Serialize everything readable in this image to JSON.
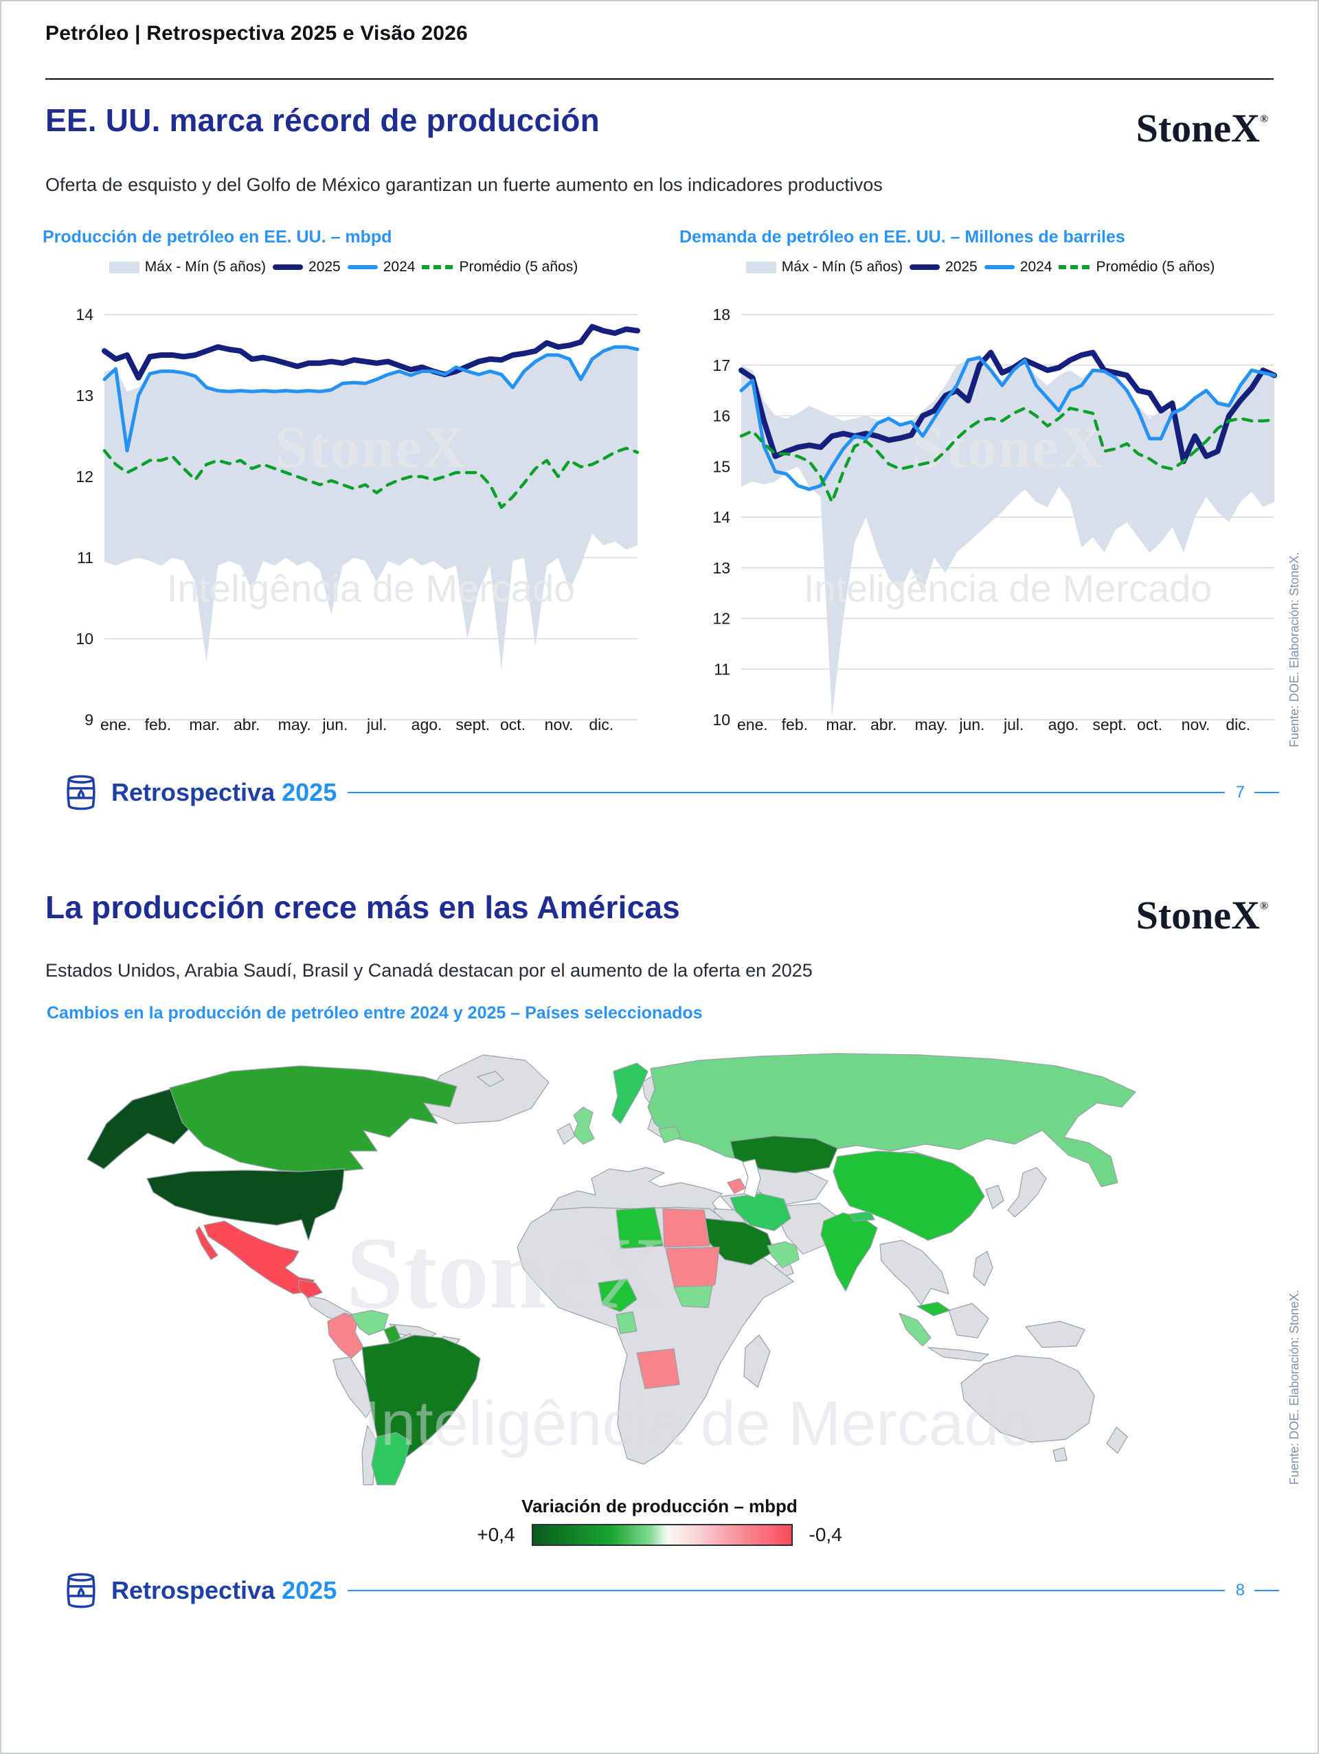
{
  "page_header": {
    "title": "Petróleo | Retrospectiva 2025 e Visão 2026"
  },
  "brand": {
    "logo": "StoneX",
    "registered": "®"
  },
  "watermark": {
    "line1": "StoneX",
    "line2": "Inteligência de Mercado"
  },
  "chart_legend": {
    "band": "Máx - Mín (5 años)",
    "y2025": "2025",
    "y2024": "2024",
    "avg": "Promédio (5 años)"
  },
  "slide1": {
    "title": "EE. UU. marca récord de producción",
    "subtitle": "Oferta de esquisto y del Golfo de México garantizan un fuerte aumento en los indicadores productivos",
    "source_note": "Fuente: DOE. Elaboración: StoneX.",
    "footer": {
      "label": "Retrospectiva",
      "year": "2025",
      "page": "7"
    }
  },
  "slide2": {
    "title": "La producción crece más en las Américas",
    "subtitle": "Estados Unidos, Arabia Saudí, Brasil y Canadá destacan por el aumento de la oferta en 2025",
    "chart_title": "Cambios en la producción de petróleo entre 2024 y 2025 – Países seleccionados",
    "source_note": "Fuente: DOE. Elaboración: StoneX.",
    "footer": {
      "label": "Retrospectiva",
      "year": "2025",
      "page": "8"
    },
    "map_legend": {
      "title": "Variación de producción – mbpd",
      "max_label": "+0,4",
      "min_label": "-0,4"
    },
    "map": {
      "palette": {
        "darkest-green": "#0b4d1c",
        "dark-green": "#117a1f",
        "green": "#2aa32f",
        "medium-green": "#2ec95e",
        "bright-green": "#1fc335",
        "soft-green": "#72d689",
        "light-green": "#7ddc8f",
        "salmon": "#f9838a",
        "red": "#fd4a58",
        "neutral": "#dcdee2"
      },
      "countries": [
        {
          "name": "united-states",
          "tone": "darkest-green"
        },
        {
          "name": "canada",
          "tone": "green"
        },
        {
          "name": "mexico",
          "tone": "red"
        },
        {
          "name": "guatemala",
          "tone": "red"
        },
        {
          "name": "colombia",
          "tone": "salmon"
        },
        {
          "name": "venezuela",
          "tone": "light-green"
        },
        {
          "name": "guyana",
          "tone": "green"
        },
        {
          "name": "brazil",
          "tone": "dark-green"
        },
        {
          "name": "argentina",
          "tone": "medium-green"
        },
        {
          "name": "united-kingdom",
          "tone": "light-green"
        },
        {
          "name": "norway",
          "tone": "medium-green"
        },
        {
          "name": "baltic-states",
          "tone": "light-green"
        },
        {
          "name": "libya",
          "tone": "bright-green"
        },
        {
          "name": "egypt",
          "tone": "salmon"
        },
        {
          "name": "sudan",
          "tone": "salmon"
        },
        {
          "name": "south-sudan",
          "tone": "light-green"
        },
        {
          "name": "nigeria",
          "tone": "bright-green"
        },
        {
          "name": "gabon",
          "tone": "light-green"
        },
        {
          "name": "angola",
          "tone": "salmon"
        },
        {
          "name": "russia",
          "tone": "soft-green"
        },
        {
          "name": "kazakhstan",
          "tone": "dark-green"
        },
        {
          "name": "azerbaijan",
          "tone": "salmon"
        },
        {
          "name": "iran",
          "tone": "medium-green"
        },
        {
          "name": "saudi-arabia",
          "tone": "dark-green"
        },
        {
          "name": "oman-uae",
          "tone": "light-green"
        },
        {
          "name": "india",
          "tone": "bright-green"
        },
        {
          "name": "nepal",
          "tone": "medium-green"
        },
        {
          "name": "china",
          "tone": "bright-green"
        },
        {
          "name": "malaysia",
          "tone": "bright-green"
        },
        {
          "name": "indonesia-sumatra",
          "tone": "light-green"
        }
      ]
    }
  },
  "chart_data": [
    {
      "type": "line",
      "title": "Producción de petróleo en EE. UU. – mbpd",
      "xlabel": "",
      "ylabel": "mbpd",
      "ylim": [
        9,
        14
      ],
      "yticks": [
        9,
        10,
        11,
        12,
        13,
        14
      ],
      "grid": true,
      "legend_position": "top",
      "x_categories": [
        "ene.",
        "feb.",
        "mar.",
        "abr.",
        "may.",
        "jun.",
        "jul.",
        "ago.",
        "sept.",
        "oct.",
        "nov.",
        "dic."
      ],
      "band": {
        "name": "Máx - Mín (5 años)",
        "color": "#d9dfea",
        "top": [
          13.3,
          13.33,
          13.05,
          13.1,
          13.28,
          13.3,
          13.3,
          13.29,
          13.25,
          13.12,
          13.08,
          13.07,
          13.08,
          13.07,
          13.08,
          13.07,
          13.08,
          13.07,
          13.08,
          13.07,
          13.09,
          13.17,
          13.18,
          13.17,
          13.22,
          13.28,
          13.31,
          13.27,
          13.31,
          13.31,
          13.28,
          13.37,
          13.32,
          13.28,
          13.32,
          13.28,
          13.12,
          13.32,
          13.44,
          13.52,
          13.52,
          13.47,
          13.25,
          13.47,
          13.57,
          13.62,
          13.62,
          13.59
        ],
        "bottom": [
          10.95,
          10.9,
          10.96,
          11.0,
          10.96,
          10.9,
          11.0,
          10.96,
          10.7,
          9.7,
          10.9,
          10.96,
          10.9,
          10.6,
          10.96,
          10.9,
          11.0,
          10.9,
          10.96,
          10.85,
          10.3,
          10.9,
          11.0,
          10.96,
          10.7,
          10.96,
          10.9,
          11.0,
          10.9,
          10.96,
          10.85,
          10.9,
          10.0,
          10.6,
          10.9,
          9.62,
          10.96,
          11.0,
          9.9,
          10.9,
          11.0,
          10.6,
          10.9,
          11.3,
          11.15,
          11.2,
          11.1,
          11.15
        ]
      },
      "series": [
        {
          "name": "2025",
          "color": "#15207d",
          "width": 8,
          "values": [
            13.55,
            13.45,
            13.5,
            13.22,
            13.48,
            13.5,
            13.5,
            13.48,
            13.5,
            13.55,
            13.6,
            13.57,
            13.55,
            13.45,
            13.47,
            13.44,
            13.4,
            13.36,
            13.4,
            13.4,
            13.42,
            13.4,
            13.44,
            13.42,
            13.4,
            13.42,
            13.37,
            13.32,
            13.35,
            13.3,
            13.26,
            13.3,
            13.36,
            13.42,
            13.45,
            13.44,
            13.5,
            13.52,
            13.55,
            13.65,
            13.6,
            13.62,
            13.66,
            13.85,
            13.8,
            13.77,
            13.82,
            13.8
          ]
        },
        {
          "name": "2024",
          "color": "#2491f5",
          "width": 5,
          "values": [
            13.2,
            13.33,
            12.32,
            13.0,
            13.27,
            13.3,
            13.3,
            13.28,
            13.24,
            13.1,
            13.06,
            13.05,
            13.06,
            13.05,
            13.06,
            13.05,
            13.06,
            13.05,
            13.06,
            13.05,
            13.07,
            13.15,
            13.16,
            13.15,
            13.2,
            13.26,
            13.3,
            13.25,
            13.3,
            13.3,
            13.26,
            13.35,
            13.3,
            13.26,
            13.3,
            13.26,
            13.1,
            13.3,
            13.42,
            13.5,
            13.5,
            13.45,
            13.2,
            13.45,
            13.55,
            13.6,
            13.6,
            13.57
          ]
        },
        {
          "name": "Promédio (5 años)",
          "color": "#0aa02c",
          "width": 4.5,
          "dash": "13 11",
          "values": [
            12.32,
            12.15,
            12.05,
            12.12,
            12.2,
            12.2,
            12.25,
            12.1,
            11.96,
            12.15,
            12.2,
            12.16,
            12.2,
            12.1,
            12.15,
            12.1,
            12.05,
            12.0,
            11.95,
            11.9,
            11.95,
            11.9,
            11.85,
            11.9,
            11.8,
            11.9,
            11.96,
            12.0,
            12.0,
            11.96,
            12.0,
            12.05,
            12.05,
            12.05,
            11.9,
            11.62,
            11.75,
            11.92,
            12.1,
            12.2,
            12.0,
            12.2,
            12.12,
            12.15,
            12.22,
            12.3,
            12.35,
            12.3
          ]
        }
      ]
    },
    {
      "type": "line",
      "title": "Demanda de petróleo en EE. UU. – Millones de barriles",
      "xlabel": "",
      "ylabel": "Millones de barriles",
      "ylim": [
        10,
        18
      ],
      "yticks": [
        10,
        11,
        12,
        13,
        14,
        15,
        16,
        17,
        18
      ],
      "grid": true,
      "legend_position": "top",
      "x_categories": [
        "ene.",
        "feb.",
        "mar.",
        "abr.",
        "may.",
        "jun.",
        "jul.",
        "ago.",
        "sept.",
        "oct.",
        "nov.",
        "dic."
      ],
      "band": {
        "name": "Máx - Mín (5 años)",
        "color": "#d9dfea",
        "top": [
          17.0,
          16.9,
          16.3,
          16.0,
          15.95,
          16.05,
          16.2,
          16.1,
          16.0,
          15.9,
          15.95,
          16.0,
          15.92,
          15.96,
          15.86,
          15.9,
          16.1,
          16.3,
          16.6,
          17.0,
          17.1,
          17.15,
          16.95,
          16.7,
          16.9,
          17.05,
          16.8,
          16.6,
          16.8,
          16.9,
          16.75,
          16.9,
          16.9,
          16.8,
          16.55,
          16.2,
          15.95,
          16.1,
          16.1,
          16.2,
          16.4,
          16.5,
          16.3,
          16.25,
          16.6,
          16.9,
          16.85,
          16.82
        ],
        "bottom": [
          14.6,
          14.7,
          14.65,
          14.7,
          14.9,
          15.0,
          14.6,
          14.4,
          10.05,
          12.0,
          13.5,
          14.0,
          13.3,
          12.8,
          12.55,
          13.0,
          12.5,
          13.2,
          12.9,
          13.3,
          13.5,
          13.7,
          13.9,
          14.1,
          14.35,
          14.55,
          14.3,
          14.2,
          14.6,
          14.3,
          13.4,
          13.6,
          13.3,
          13.75,
          13.9,
          13.6,
          13.3,
          13.5,
          13.8,
          13.3,
          14.0,
          14.4,
          14.1,
          13.9,
          14.3,
          14.5,
          14.2,
          14.3
        ]
      },
      "series": [
        {
          "name": "2025",
          "color": "#15207d",
          "width": 8,
          "values": [
            16.9,
            16.75,
            15.9,
            15.2,
            15.3,
            15.38,
            15.42,
            15.38,
            15.6,
            15.65,
            15.6,
            15.65,
            15.6,
            15.52,
            15.56,
            15.62,
            16.0,
            16.1,
            16.4,
            16.5,
            16.3,
            17.0,
            17.25,
            16.85,
            16.95,
            17.1,
            17.0,
            16.9,
            16.95,
            17.1,
            17.2,
            17.25,
            16.9,
            16.85,
            16.8,
            16.5,
            16.45,
            16.1,
            16.25,
            15.1,
            15.6,
            15.2,
            15.3,
            16.0,
            16.3,
            16.55,
            16.9,
            16.8
          ]
        },
        {
          "name": "2024",
          "color": "#2491f5",
          "width": 5,
          "values": [
            16.5,
            16.7,
            15.4,
            14.9,
            14.85,
            14.62,
            14.55,
            14.62,
            15.0,
            15.35,
            15.6,
            15.55,
            15.85,
            15.95,
            15.82,
            15.88,
            15.6,
            15.95,
            16.3,
            16.6,
            17.1,
            17.15,
            16.9,
            16.6,
            16.9,
            17.1,
            16.6,
            16.35,
            16.1,
            16.5,
            16.6,
            16.9,
            16.88,
            16.75,
            16.5,
            16.1,
            15.55,
            15.55,
            16.05,
            16.15,
            16.35,
            16.5,
            16.25,
            16.2,
            16.6,
            16.9,
            16.85,
            16.8
          ]
        },
        {
          "name": "Promédio (5 años)",
          "color": "#0aa02c",
          "width": 4.5,
          "dash": "13 11",
          "values": [
            15.6,
            15.7,
            15.45,
            15.25,
            15.25,
            15.2,
            15.1,
            14.8,
            14.3,
            14.9,
            15.4,
            15.5,
            15.3,
            15.05,
            14.95,
            15.0,
            15.05,
            15.1,
            15.3,
            15.55,
            15.75,
            15.9,
            15.95,
            15.9,
            16.05,
            16.15,
            16.0,
            15.8,
            15.95,
            16.15,
            16.1,
            16.05,
            15.3,
            15.35,
            15.45,
            15.25,
            15.15,
            15.0,
            14.95,
            15.1,
            15.3,
            15.5,
            15.75,
            15.9,
            15.95,
            15.9,
            15.9,
            15.92
          ]
        }
      ]
    }
  ]
}
